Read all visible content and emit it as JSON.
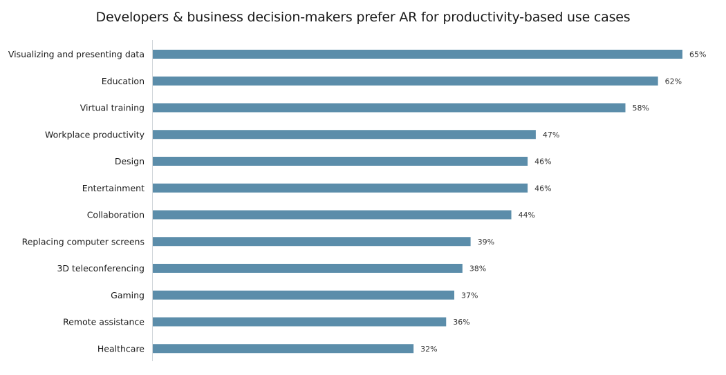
{
  "chart_data": {
    "type": "bar",
    "orientation": "horizontal",
    "title": "Developers & business decision-makers prefer AR for productivity-based use cases",
    "xlabel": "",
    "ylabel": "",
    "categories": [
      "Visualizing and presenting data",
      "Education",
      "Virtual training",
      "Workplace productivity",
      "Design",
      "Entertainment",
      "Collaboration",
      "Replacing computer screens",
      "3D teleconferencing",
      "Gaming",
      "Remote assistance",
      "Healthcare"
    ],
    "values": [
      65,
      62,
      58,
      47,
      46,
      46,
      44,
      39,
      38,
      37,
      36,
      32
    ],
    "value_labels": [
      "65%",
      "62%",
      "58%",
      "47%",
      "46%",
      "46%",
      "44%",
      "39%",
      "38%",
      "37%",
      "36%",
      "32%"
    ],
    "unit": "%",
    "xlim": [
      0,
      65
    ],
    "grid": false,
    "legend": "none",
    "bar_color": "#5b8daa",
    "axis_color": "#d0d6da"
  }
}
